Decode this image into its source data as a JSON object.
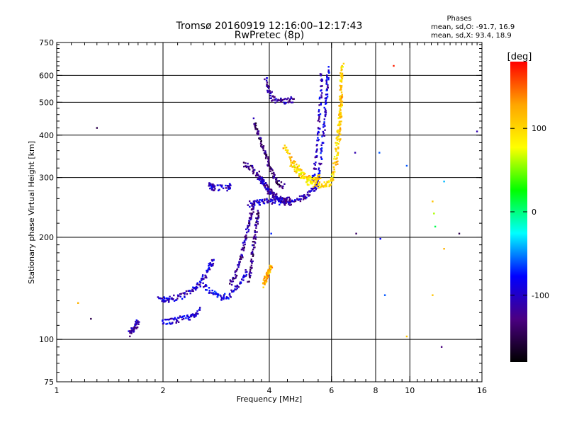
{
  "title": "Tromsø 20160919 12:16:00–12:17:43",
  "subtitle": "RwPretec (8p)",
  "stats": {
    "heading": "Phases",
    "line_o": "mean, sd,O: -91.7, 16.9",
    "line_x": "mean, sd,X:  93.4, 18.9"
  },
  "chart_data": {
    "type": "scatter",
    "xlabel": "Frequency [MHz]",
    "ylabel": "Stationary phase Virtual Height [km]",
    "xscale": "log",
    "yscale": "log",
    "xlim": [
      1,
      16
    ],
    "ylim": [
      75,
      750
    ],
    "xticks": [
      1,
      2,
      4,
      6,
      8,
      10,
      16
    ],
    "xtick_labels": [
      "1",
      "2",
      "4",
      "6",
      "8",
      "10",
      "16"
    ],
    "xgrid": [
      2,
      4,
      6,
      8,
      10
    ],
    "yticks": [
      75,
      100,
      200,
      300,
      400,
      500,
      600,
      750
    ],
    "ytick_labels": [
      "75",
      "100",
      "200",
      "300",
      "400",
      "500",
      "600",
      "750"
    ],
    "ygrid": [
      100,
      200,
      300,
      400,
      500,
      600
    ],
    "grid": true,
    "colorbar": {
      "label": "[deg]",
      "range": [
        -180,
        180
      ],
      "ticks": [
        100,
        0,
        -100
      ],
      "tick_labels": [
        "100",
        "0",
        "-100"
      ],
      "colors": [
        "#000000",
        "#4b0082",
        "#0000ff",
        "#00ffff",
        "#00ff00",
        "#ffff00",
        "#ffa500",
        "#ff0000"
      ]
    },
    "series": [
      {
        "phase": -100,
        "trace": [
          [
            1.95,
            131
          ],
          [
            2.05,
            131
          ],
          [
            2.15,
            132
          ],
          [
            2.3,
            135
          ],
          [
            2.45,
            140
          ],
          [
            2.55,
            147
          ],
          [
            2.65,
            156
          ],
          [
            2.72,
            165
          ],
          [
            2.78,
            172
          ]
        ]
      },
      {
        "phase": -95,
        "trace": [
          [
            1.98,
            113
          ],
          [
            2.1,
            113
          ],
          [
            2.2,
            114
          ],
          [
            2.35,
            116
          ],
          [
            2.45,
            118
          ],
          [
            2.55,
            122
          ]
        ]
      },
      {
        "phase": -110,
        "trace": [
          [
            1.6,
            104
          ],
          [
            1.65,
            107
          ],
          [
            1.68,
            110
          ],
          [
            1.7,
            113
          ]
        ]
      },
      {
        "phase": -90,
        "trace": [
          [
            2.6,
            145
          ],
          [
            2.75,
            138
          ],
          [
            2.9,
            133
          ],
          [
            3.05,
            134
          ],
          [
            3.2,
            140
          ],
          [
            3.35,
            150
          ],
          [
            3.45,
            160
          ]
        ]
      },
      {
        "phase": -120,
        "trace": [
          [
            3.1,
            145
          ],
          [
            3.2,
            155
          ],
          [
            3.3,
            170
          ],
          [
            3.38,
            185
          ],
          [
            3.45,
            205
          ],
          [
            3.52,
            225
          ],
          [
            3.58,
            240
          ],
          [
            3.62,
            250
          ]
        ]
      },
      {
        "phase": -130,
        "trace": [
          [
            3.5,
            150
          ],
          [
            3.55,
            165
          ],
          [
            3.6,
            185
          ],
          [
            3.65,
            205
          ],
          [
            3.7,
            225
          ],
          [
            3.72,
            240
          ]
        ]
      },
      {
        "phase": -125,
        "trace": [
          [
            3.4,
            330
          ],
          [
            3.55,
            320
          ],
          [
            3.7,
            305
          ],
          [
            3.85,
            290
          ],
          [
            4.0,
            275
          ],
          [
            4.2,
            262
          ],
          [
            4.4,
            255
          ],
          [
            4.6,
            253
          ]
        ]
      },
      {
        "phase": -135,
        "trace": [
          [
            3.6,
            440
          ],
          [
            3.7,
            410
          ],
          [
            3.8,
            380
          ],
          [
            3.9,
            350
          ],
          [
            4.0,
            325
          ],
          [
            4.1,
            305
          ],
          [
            4.2,
            293
          ],
          [
            4.4,
            282
          ]
        ]
      },
      {
        "phase": -110,
        "trace": [
          [
            3.7,
            310
          ],
          [
            3.8,
            295
          ],
          [
            3.9,
            282
          ],
          [
            4.0,
            272
          ],
          [
            4.2,
            262
          ],
          [
            4.4,
            258
          ],
          [
            4.6,
            258
          ]
        ]
      },
      {
        "phase": -105,
        "trace": [
          [
            3.5,
            250
          ],
          [
            3.7,
            253
          ],
          [
            3.9,
            255
          ],
          [
            4.1,
            255
          ],
          [
            4.4,
            254
          ],
          [
            4.7,
            256
          ],
          [
            5.0,
            262
          ],
          [
            5.2,
            270
          ],
          [
            5.4,
            280
          ],
          [
            5.5,
            290
          ]
        ]
      },
      {
        "phase": -115,
        "trace": [
          [
            3.9,
            585
          ],
          [
            4.0,
            540
          ],
          [
            4.1,
            510
          ],
          [
            4.3,
            505
          ],
          [
            4.5,
            505
          ],
          [
            4.7,
            510
          ]
        ]
      },
      {
        "phase": -95,
        "trace": [
          [
            5.5,
            300
          ],
          [
            5.6,
            340
          ],
          [
            5.7,
            400
          ],
          [
            5.75,
            460
          ],
          [
            5.8,
            520
          ],
          [
            5.85,
            580
          ],
          [
            5.88,
            630
          ]
        ]
      },
      {
        "phase": -100,
        "trace": [
          [
            5.3,
            290
          ],
          [
            5.4,
            330
          ],
          [
            5.5,
            390
          ],
          [
            5.55,
            460
          ],
          [
            5.6,
            540
          ],
          [
            5.62,
            620
          ]
        ]
      },
      {
        "phase": -100,
        "trace": [
          [
            2.7,
            285
          ],
          [
            2.75,
            282
          ],
          [
            2.8,
            279
          ],
          [
            3.05,
            280
          ],
          [
            3.1,
            284
          ]
        ]
      },
      {
        "phase": 105,
        "trace": [
          [
            4.4,
            370
          ],
          [
            4.6,
            345
          ],
          [
            4.8,
            322
          ],
          [
            5.0,
            305
          ],
          [
            5.2,
            297
          ],
          [
            5.4,
            296
          ],
          [
            5.6,
            300
          ]
        ]
      },
      {
        "phase": 95,
        "trace": [
          [
            4.6,
            330
          ],
          [
            4.8,
            312
          ],
          [
            5.0,
            298
          ],
          [
            5.2,
            290
          ],
          [
            5.5,
            285
          ],
          [
            5.8,
            285
          ],
          [
            6.0,
            290
          ]
        ]
      },
      {
        "phase": 100,
        "trace": [
          [
            6.0,
            290
          ],
          [
            6.1,
            320
          ],
          [
            6.2,
            370
          ],
          [
            6.3,
            420
          ],
          [
            6.35,
            480
          ],
          [
            6.38,
            540
          ],
          [
            6.4,
            600
          ],
          [
            6.45,
            640
          ]
        ]
      },
      {
        "phase": 110,
        "trace": [
          [
            6.2,
            330
          ],
          [
            6.3,
            380
          ],
          [
            6.35,
            430
          ],
          [
            6.38,
            480
          ],
          [
            6.4,
            530
          ]
        ]
      },
      {
        "phase": 120,
        "trace": [
          [
            3.85,
            145
          ],
          [
            3.9,
            150
          ],
          [
            3.95,
            155
          ],
          [
            4.0,
            160
          ],
          [
            4.05,
            165
          ]
        ]
      }
    ],
    "scatter_points": [
      {
        "x": 1.15,
        "y": 128,
        "phase": 120
      },
      {
        "x": 1.25,
        "y": 115,
        "phase": -150
      },
      {
        "x": 1.3,
        "y": 420,
        "phase": -150
      },
      {
        "x": 4.05,
        "y": 205,
        "phase": -70
      },
      {
        "x": 7.0,
        "y": 355,
        "phase": -110
      },
      {
        "x": 7.05,
        "y": 205,
        "phase": -140
      },
      {
        "x": 8.2,
        "y": 355,
        "phase": -60
      },
      {
        "x": 8.25,
        "y": 198,
        "phase": -80
      },
      {
        "x": 8.5,
        "y": 135,
        "phase": -60
      },
      {
        "x": 9.0,
        "y": 640,
        "phase": 170
      },
      {
        "x": 9.8,
        "y": 325,
        "phase": -60
      },
      {
        "x": 9.8,
        "y": 102,
        "phase": 110
      },
      {
        "x": 11.6,
        "y": 255,
        "phase": 110
      },
      {
        "x": 11.7,
        "y": 235,
        "phase": 60
      },
      {
        "x": 11.8,
        "y": 215,
        "phase": 10
      },
      {
        "x": 11.6,
        "y": 135,
        "phase": 110
      },
      {
        "x": 12.3,
        "y": 95,
        "phase": -130
      },
      {
        "x": 12.5,
        "y": 292,
        "phase": -40
      },
      {
        "x": 12.5,
        "y": 185,
        "phase": 120
      },
      {
        "x": 13.8,
        "y": 205,
        "phase": -150
      },
      {
        "x": 15.5,
        "y": 410,
        "phase": -110
      }
    ]
  }
}
